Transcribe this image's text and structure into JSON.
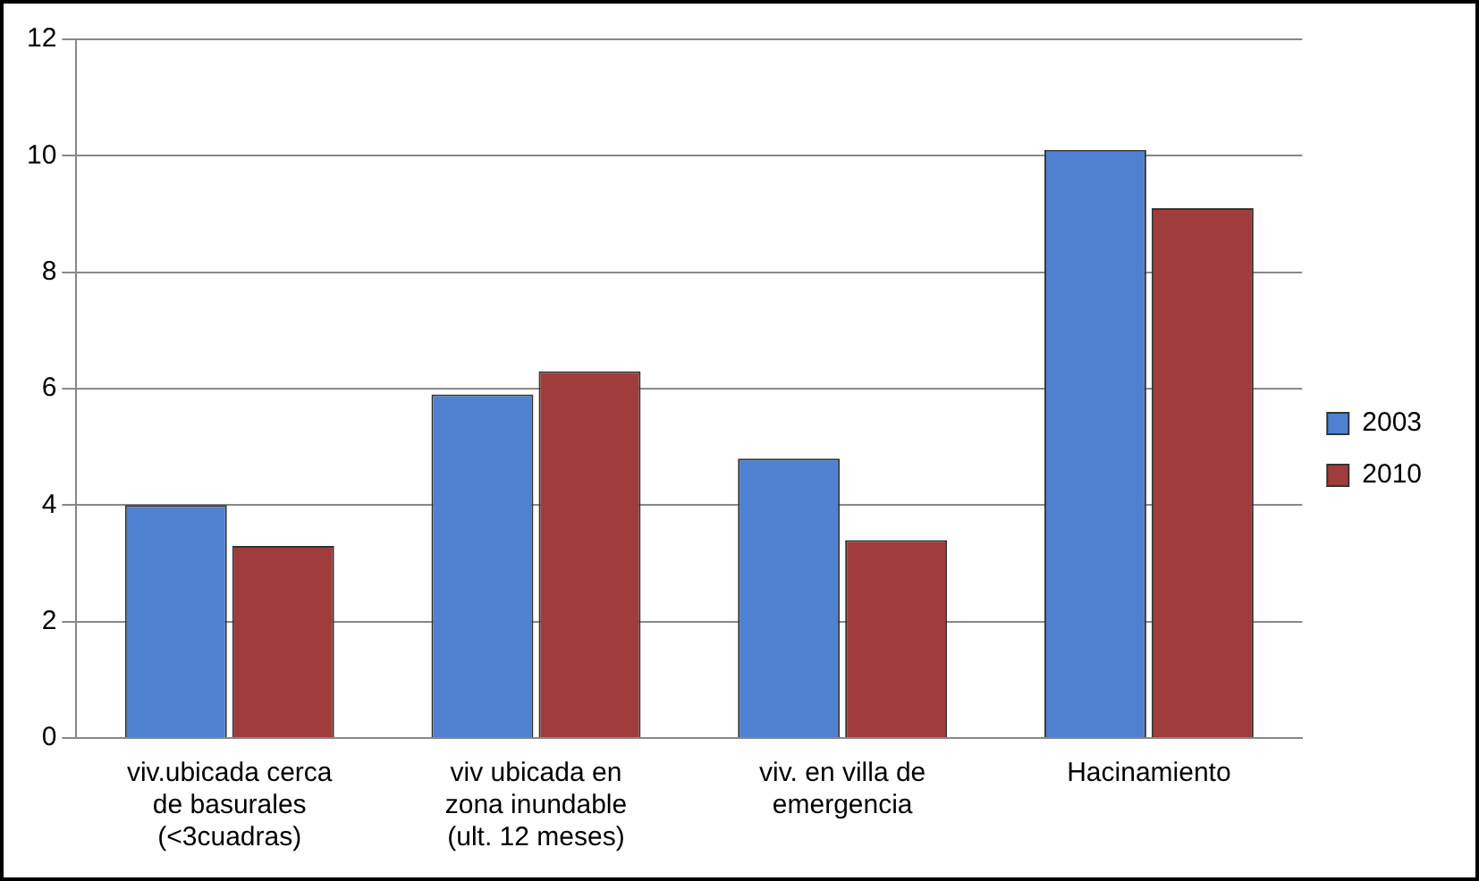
{
  "chart_data": {
    "type": "bar",
    "categories": [
      "viv.ubicada cerca de basurales (<3cuadras)",
      "viv ubicada en zona inundable (ult. 12 meses)",
      "viv. en villa de emergencia",
      "Hacinamiento"
    ],
    "series": [
      {
        "name": "2003",
        "color": "#4f81d0",
        "values": [
          4.0,
          5.9,
          4.8,
          10.1
        ]
      },
      {
        "name": "2010",
        "color": "#a03c3c",
        "values": [
          3.3,
          6.3,
          3.4,
          9.1
        ]
      }
    ],
    "ylim": [
      0,
      12
    ],
    "yticks": [
      0,
      2,
      4,
      6,
      8,
      10,
      12
    ],
    "grid": "y",
    "legend": "right"
  }
}
